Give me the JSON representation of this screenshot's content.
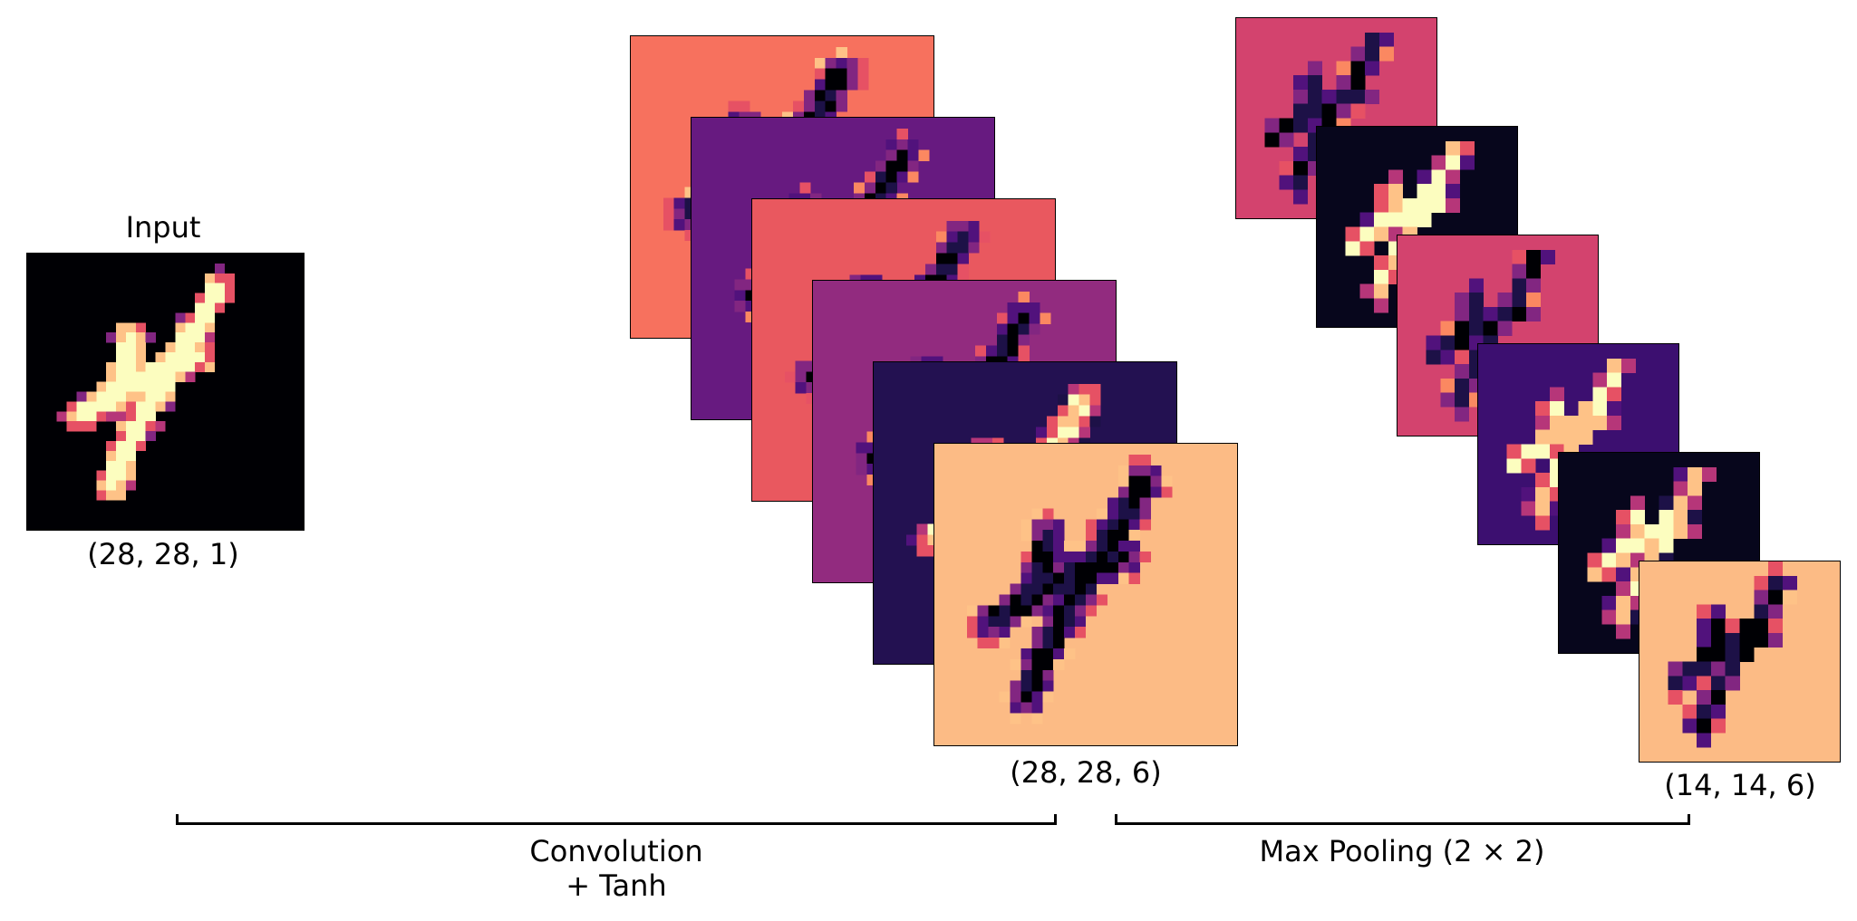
{
  "input": {
    "title": "Input",
    "shape": "(28, 28, 1)",
    "background": "#000004"
  },
  "convolution": {
    "shape": "(28, 28, 6)",
    "label_line1": "Convolution",
    "label_line2": "+ Tanh",
    "map_backgrounds": [
      "#f7715e",
      "#671a80",
      "#e9585f",
      "#922b7f",
      "#231151",
      "#fcbb85"
    ]
  },
  "pooling": {
    "shape": "(14, 14, 6)",
    "label": "Max Pooling (2 × 2)",
    "map_backgrounds": [
      "#d3436e",
      "#07061c",
      "#d3436e",
      "#3c0f70",
      "#07061c",
      "#fcbb85"
    ]
  },
  "colormap": "magma"
}
